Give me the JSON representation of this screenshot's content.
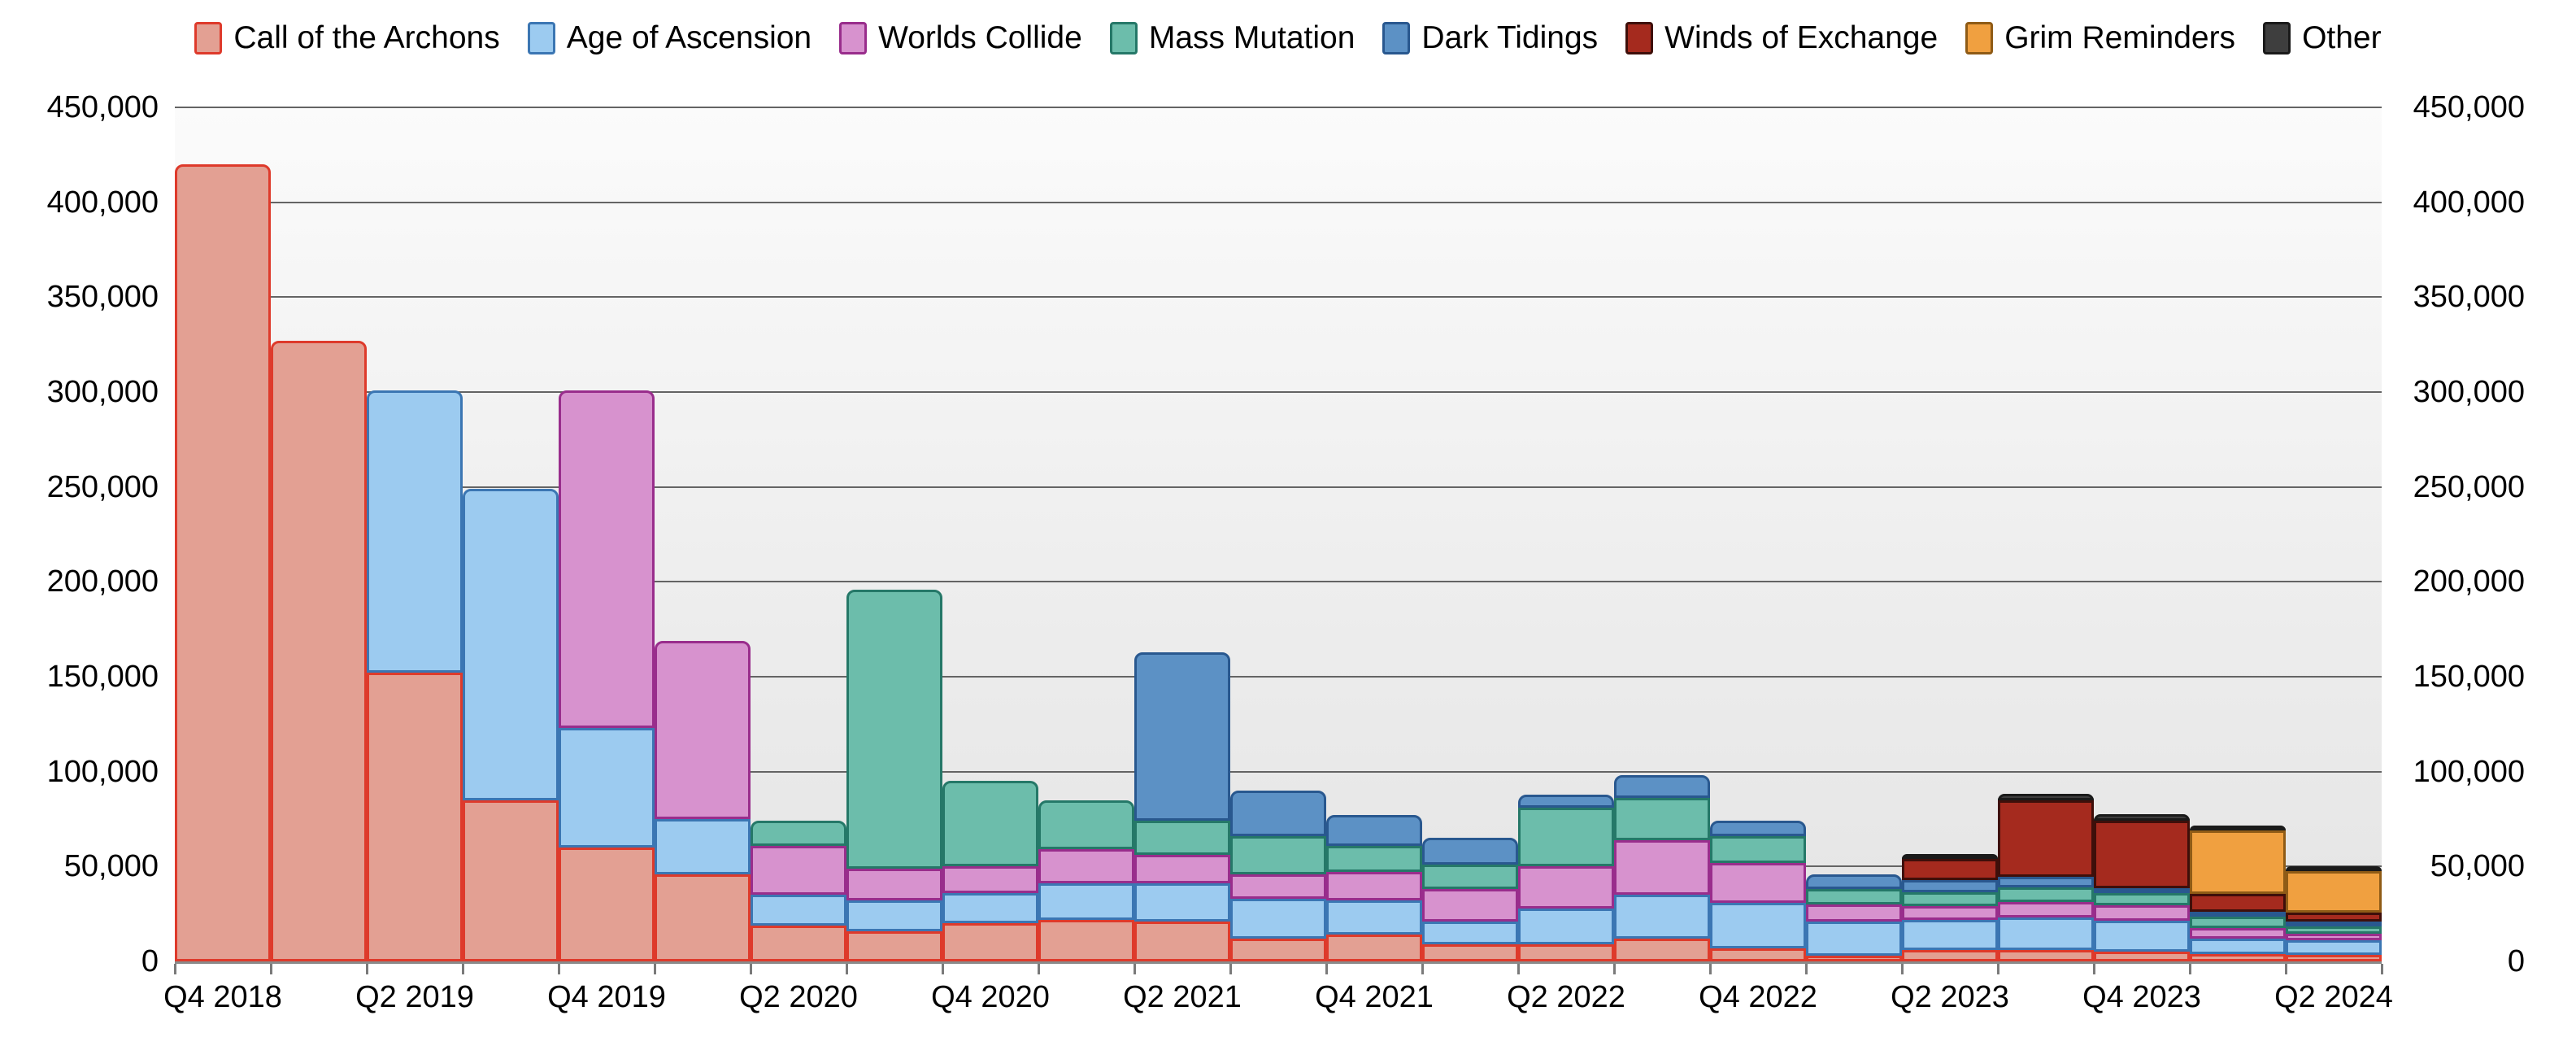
{
  "chart_data": {
    "type": "bar",
    "stacked": true,
    "title": "",
    "legend_position": "top",
    "grid": true,
    "y_axis_sides": "both",
    "ylim": [
      0,
      450000
    ],
    "y_tick_step": 50000,
    "y_tick_labels": [
      "0",
      "50,000",
      "100,000",
      "150,000",
      "200,000",
      "250,000",
      "300,000",
      "350,000",
      "400,000",
      "450,000"
    ],
    "categories": [
      "Q4 2018",
      "Q1 2019",
      "Q2 2019",
      "Q3 2019",
      "Q4 2019",
      "Q1 2020",
      "Q2 2020",
      "Q3 2020",
      "Q4 2020",
      "Q1 2021",
      "Q2 2021",
      "Q3 2021",
      "Q4 2021",
      "Q1 2022",
      "Q2 2022",
      "Q3 2022",
      "Q4 2022",
      "Q1 2023",
      "Q2 2023",
      "Q3 2023",
      "Q4 2023",
      "Q1 2024",
      "Q2 2024"
    ],
    "x_labeled_every": 2,
    "x_tick_labels_shown": [
      "Q4 2018",
      "Q2 2019",
      "Q4 2019",
      "Q2 2020",
      "Q4 2020",
      "Q2 2021",
      "Q4 2021",
      "Q2 2022",
      "Q4 2022",
      "Q2 2023",
      "Q4 2023",
      "Q2 2024"
    ],
    "series": [
      {
        "name": "Call of the Archons",
        "fill": "#E3A093",
        "stroke": "#DE3A2B",
        "values": [
          420000,
          327000,
          152000,
          85000,
          60000,
          46000,
          19000,
          16000,
          20000,
          22000,
          21000,
          12000,
          14000,
          9000,
          9000,
          12000,
          7000,
          3000,
          6000,
          6000,
          5000,
          4000,
          3500
        ]
      },
      {
        "name": "Age of Ascension",
        "fill": "#9CCBF0",
        "stroke": "#3B76B3",
        "values": [
          0,
          0,
          149000,
          164000,
          63000,
          29000,
          16000,
          16000,
          16000,
          19000,
          20000,
          21000,
          18000,
          12000,
          19000,
          23000,
          24000,
          18000,
          16000,
          17000,
          16500,
          8000,
          7500
        ]
      },
      {
        "name": "Worlds Collide",
        "fill": "#D792CE",
        "stroke": "#992D8C",
        "values": [
          0,
          0,
          0,
          0,
          178000,
          94000,
          26000,
          17000,
          14000,
          18000,
          15000,
          13000,
          15000,
          17000,
          22000,
          29000,
          21000,
          9000,
          7000,
          8500,
          8000,
          5500,
          3500
        ]
      },
      {
        "name": "Mass Mutation",
        "fill": "#6CBDAB",
        "stroke": "#257868",
        "values": [
          0,
          0,
          0,
          0,
          0,
          0,
          13000,
          147000,
          45000,
          26000,
          18000,
          20000,
          14000,
          13000,
          31000,
          22000,
          14000,
          8000,
          7500,
          7500,
          6500,
          6000,
          4000
        ]
      },
      {
        "name": "Dark Tidings",
        "fill": "#5C91C5",
        "stroke": "#29588F",
        "values": [
          0,
          0,
          0,
          0,
          0,
          0,
          0,
          0,
          0,
          0,
          89000,
          24000,
          16000,
          14000,
          7000,
          12000,
          8000,
          8000,
          6500,
          5500,
          2500,
          2000,
          2000
        ]
      },
      {
        "name": "Winds of Exchange",
        "fill": "#A52A1E",
        "stroke": "#3E0F0A",
        "values": [
          0,
          0,
          0,
          0,
          0,
          0,
          0,
          0,
          0,
          0,
          0,
          0,
          0,
          0,
          0,
          0,
          0,
          0,
          11000,
          40500,
          35500,
          9500,
          4500
        ]
      },
      {
        "name": "Grim Reminders",
        "fill": "#F0A040",
        "stroke": "#8F5B16",
        "values": [
          0,
          0,
          0,
          0,
          0,
          0,
          0,
          0,
          0,
          0,
          0,
          0,
          0,
          0,
          0,
          0,
          0,
          0,
          0,
          0,
          0,
          33500,
          22000
        ]
      },
      {
        "name": "Other",
        "fill": "#3E3E3E",
        "stroke": "#1A1A1A",
        "values": [
          0,
          0,
          0,
          0,
          0,
          0,
          0,
          0,
          0,
          0,
          0,
          0,
          0,
          0,
          0,
          0,
          0,
          0,
          2500,
          3500,
          3500,
          2500,
          2500
        ]
      }
    ],
    "bar_totals": [
      420000,
      327000,
      301000,
      249000,
      301000,
      169000,
      74000,
      196000,
      95000,
      85000,
      163000,
      90000,
      77000,
      65000,
      88000,
      98000,
      74000,
      46000,
      56500,
      88500,
      77500,
      71000,
      49500
    ]
  },
  "layout_colors": {
    "plot_bg_top": "#fbfbfb",
    "plot_bg_bottom": "#e4e4e4",
    "gridline": "#646464",
    "axis_line": "#8a8a8a",
    "text": "#000000"
  }
}
